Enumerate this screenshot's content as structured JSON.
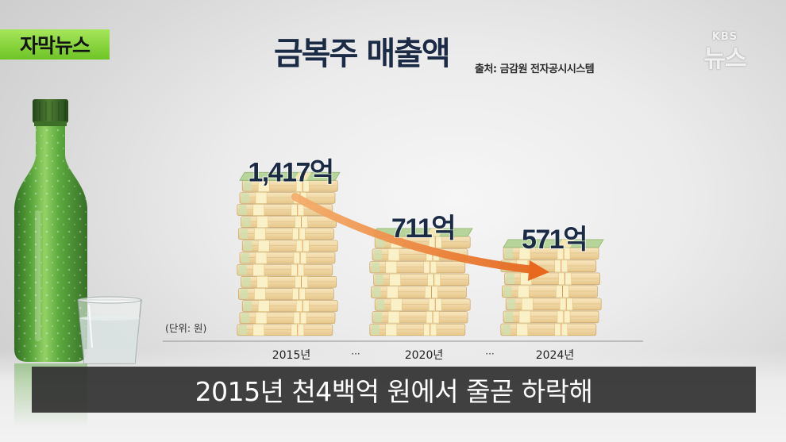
{
  "badge": {
    "label": "자막뉴스"
  },
  "logo": {
    "brand": "KBS",
    "service": "뉴스"
  },
  "subtitle": "2015년 천4백억 원에서 줄곧 하락해",
  "colors": {
    "badge": "#84d43a",
    "title": "#1c2b45",
    "arrow": "#e8691e",
    "subtitle_bg": "#2c2c2c",
    "bottle": "#4f9f31"
  },
  "chart_data": {
    "type": "bar",
    "title": "금복주 매출액",
    "source": "출처: 금감원 전자공시시스템",
    "categories": [
      "2015년",
      "2020년",
      "2024년"
    ],
    "values": [
      1417,
      711,
      571
    ],
    "data_labels": [
      "1,417억",
      "711억",
      "571억"
    ],
    "unit_note": "(단위: 원)",
    "separators": [
      "···",
      "···"
    ],
    "xlabel": "",
    "ylabel": "",
    "grid": false
  }
}
